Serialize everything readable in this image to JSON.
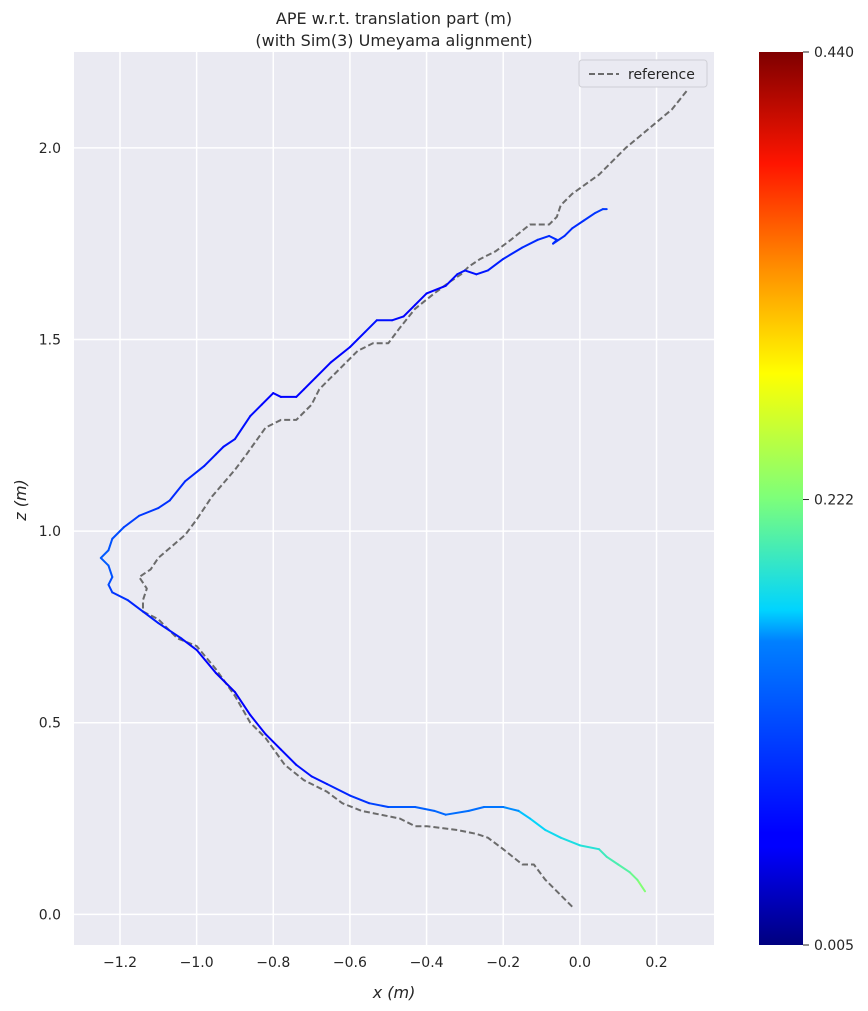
{
  "chart_data": {
    "type": "line",
    "title": "APE w.r.t. translation part (m)",
    "subtitle": "(with Sim(3) Umeyama alignment)",
    "xlabel": "x (m)",
    "ylabel": "z (m)",
    "xlim": [
      -1.32,
      0.35
    ],
    "ylim": [
      -0.08,
      2.25
    ],
    "xticks": [
      -1.2,
      -1.0,
      -0.8,
      -0.6,
      -0.4,
      -0.2,
      0.0,
      0.2
    ],
    "xtick_labels": [
      "−1.2",
      "−1.0",
      "−0.8",
      "−0.6",
      "−0.4",
      "−0.2",
      "0.0",
      "0.2"
    ],
    "yticks": [
      0.0,
      0.5,
      1.0,
      1.5,
      2.0
    ],
    "ytick_labels": [
      "0.0",
      "0.5",
      "1.0",
      "1.5",
      "2.0"
    ],
    "grid": true,
    "legend": {
      "position": "top-right",
      "entries": [
        "reference"
      ]
    },
    "colorbar": {
      "colormap": "jet",
      "min": 0.005,
      "max": 0.44,
      "tick_labels": [
        "0.005",
        "0.222",
        "0.440"
      ],
      "tick_values": [
        0.005,
        0.222,
        0.44
      ]
    },
    "series": [
      {
        "name": "reference",
        "style": "dashed",
        "color": "#6b6b6b",
        "points": [
          [
            -0.02,
            0.02
          ],
          [
            -0.05,
            0.05
          ],
          [
            -0.09,
            0.09
          ],
          [
            -0.12,
            0.13
          ],
          [
            -0.15,
            0.13
          ],
          [
            -0.2,
            0.17
          ],
          [
            -0.24,
            0.2
          ],
          [
            -0.27,
            0.21
          ],
          [
            -0.32,
            0.22
          ],
          [
            -0.4,
            0.23
          ],
          [
            -0.43,
            0.23
          ],
          [
            -0.47,
            0.25
          ],
          [
            -0.52,
            0.26
          ],
          [
            -0.57,
            0.27
          ],
          [
            -0.62,
            0.29
          ],
          [
            -0.66,
            0.32
          ],
          [
            -0.72,
            0.35
          ],
          [
            -0.77,
            0.39
          ],
          [
            -0.82,
            0.46
          ],
          [
            -0.86,
            0.5
          ],
          [
            -0.9,
            0.57
          ],
          [
            -0.95,
            0.64
          ],
          [
            -1.0,
            0.7
          ],
          [
            -1.05,
            0.72
          ],
          [
            -1.1,
            0.77
          ],
          [
            -1.14,
            0.79
          ],
          [
            -1.14,
            0.82
          ],
          [
            -1.13,
            0.85
          ],
          [
            -1.15,
            0.88
          ],
          [
            -1.12,
            0.9
          ],
          [
            -1.1,
            0.93
          ],
          [
            -1.03,
            0.99
          ],
          [
            -1.0,
            1.03
          ],
          [
            -0.96,
            1.09
          ],
          [
            -0.9,
            1.16
          ],
          [
            -0.87,
            1.2
          ],
          [
            -0.82,
            1.27
          ],
          [
            -0.78,
            1.29
          ],
          [
            -0.74,
            1.29
          ],
          [
            -0.7,
            1.33
          ],
          [
            -0.68,
            1.37
          ],
          [
            -0.62,
            1.43
          ],
          [
            -0.58,
            1.47
          ],
          [
            -0.54,
            1.49
          ],
          [
            -0.5,
            1.49
          ],
          [
            -0.47,
            1.53
          ],
          [
            -0.43,
            1.58
          ],
          [
            -0.38,
            1.62
          ],
          [
            -0.34,
            1.65
          ],
          [
            -0.31,
            1.67
          ],
          [
            -0.29,
            1.69
          ],
          [
            -0.26,
            1.71
          ],
          [
            -0.22,
            1.73
          ],
          [
            -0.18,
            1.76
          ],
          [
            -0.13,
            1.8
          ],
          [
            -0.08,
            1.8
          ],
          [
            -0.06,
            1.82
          ],
          [
            -0.05,
            1.85
          ],
          [
            -0.02,
            1.88
          ],
          [
            0.05,
            1.93
          ],
          [
            0.12,
            2.0
          ],
          [
            0.18,
            2.05
          ],
          [
            0.24,
            2.1
          ],
          [
            0.28,
            2.15
          ]
        ]
      },
      {
        "name": "",
        "style": "solid-colormapped",
        "points": [
          [
            0.17,
            0.06
          ],
          [
            0.15,
            0.09
          ],
          [
            0.13,
            0.11
          ],
          [
            0.1,
            0.13
          ],
          [
            0.07,
            0.15
          ],
          [
            0.05,
            0.17
          ],
          [
            0.0,
            0.18
          ],
          [
            -0.05,
            0.2
          ],
          [
            -0.09,
            0.22
          ],
          [
            -0.13,
            0.25
          ],
          [
            -0.16,
            0.27
          ],
          [
            -0.2,
            0.28
          ],
          [
            -0.25,
            0.28
          ],
          [
            -0.29,
            0.27
          ],
          [
            -0.35,
            0.26
          ],
          [
            -0.38,
            0.27
          ],
          [
            -0.43,
            0.28
          ],
          [
            -0.5,
            0.28
          ],
          [
            -0.55,
            0.29
          ],
          [
            -0.6,
            0.31
          ],
          [
            -0.66,
            0.34
          ],
          [
            -0.7,
            0.36
          ],
          [
            -0.74,
            0.39
          ],
          [
            -0.78,
            0.43
          ],
          [
            -0.82,
            0.47
          ],
          [
            -0.86,
            0.52
          ],
          [
            -0.9,
            0.58
          ],
          [
            -0.95,
            0.63
          ],
          [
            -1.0,
            0.69
          ],
          [
            -1.04,
            0.72
          ],
          [
            -1.1,
            0.76
          ],
          [
            -1.14,
            0.79
          ],
          [
            -1.18,
            0.82
          ],
          [
            -1.22,
            0.84
          ],
          [
            -1.23,
            0.86
          ],
          [
            -1.22,
            0.88
          ],
          [
            -1.23,
            0.91
          ],
          [
            -1.25,
            0.93
          ],
          [
            -1.23,
            0.95
          ],
          [
            -1.22,
            0.98
          ],
          [
            -1.19,
            1.01
          ],
          [
            -1.15,
            1.04
          ],
          [
            -1.1,
            1.06
          ],
          [
            -1.07,
            1.08
          ],
          [
            -1.03,
            1.13
          ],
          [
            -0.98,
            1.17
          ],
          [
            -0.95,
            1.2
          ],
          [
            -0.93,
            1.22
          ],
          [
            -0.9,
            1.24
          ],
          [
            -0.86,
            1.3
          ],
          [
            -0.83,
            1.33
          ],
          [
            -0.8,
            1.36
          ],
          [
            -0.78,
            1.35
          ],
          [
            -0.74,
            1.35
          ],
          [
            -0.72,
            1.37
          ],
          [
            -0.69,
            1.4
          ],
          [
            -0.65,
            1.44
          ],
          [
            -0.6,
            1.48
          ],
          [
            -0.56,
            1.52
          ],
          [
            -0.53,
            1.55
          ],
          [
            -0.49,
            1.55
          ],
          [
            -0.46,
            1.56
          ],
          [
            -0.43,
            1.59
          ],
          [
            -0.4,
            1.62
          ],
          [
            -0.35,
            1.64
          ],
          [
            -0.32,
            1.67
          ],
          [
            -0.3,
            1.68
          ],
          [
            -0.27,
            1.67
          ],
          [
            -0.24,
            1.68
          ],
          [
            -0.2,
            1.71
          ],
          [
            -0.15,
            1.74
          ],
          [
            -0.11,
            1.76
          ],
          [
            -0.08,
            1.77
          ],
          [
            -0.06,
            1.76
          ],
          [
            -0.07,
            1.75
          ],
          [
            -0.04,
            1.77
          ],
          [
            -0.02,
            1.79
          ],
          [
            0.01,
            1.81
          ],
          [
            0.04,
            1.83
          ],
          [
            0.06,
            1.84
          ],
          [
            0.07,
            1.84
          ]
        ],
        "errors": [
          0.23,
          0.22,
          0.21,
          0.2,
          0.2,
          0.19,
          0.18,
          0.18,
          0.17,
          0.17,
          0.16,
          0.15,
          0.14,
          0.14,
          0.14,
          0.13,
          0.13,
          0.12,
          0.1,
          0.09,
          0.08,
          0.07,
          0.07,
          0.06,
          0.06,
          0.06,
          0.05,
          0.05,
          0.06,
          0.07,
          0.08,
          0.08,
          0.09,
          0.1,
          0.11,
          0.12,
          0.12,
          0.13,
          0.12,
          0.12,
          0.11,
          0.1,
          0.1,
          0.09,
          0.09,
          0.08,
          0.07,
          0.07,
          0.07,
          0.07,
          0.06,
          0.06,
          0.06,
          0.06,
          0.06,
          0.06,
          0.06,
          0.06,
          0.07,
          0.07,
          0.07,
          0.06,
          0.06,
          0.06,
          0.06,
          0.07,
          0.07,
          0.07,
          0.08,
          0.08,
          0.09,
          0.09,
          0.09,
          0.09,
          0.09,
          0.09,
          0.09,
          0.09,
          0.1,
          0.1,
          0.1
        ]
      }
    ]
  }
}
